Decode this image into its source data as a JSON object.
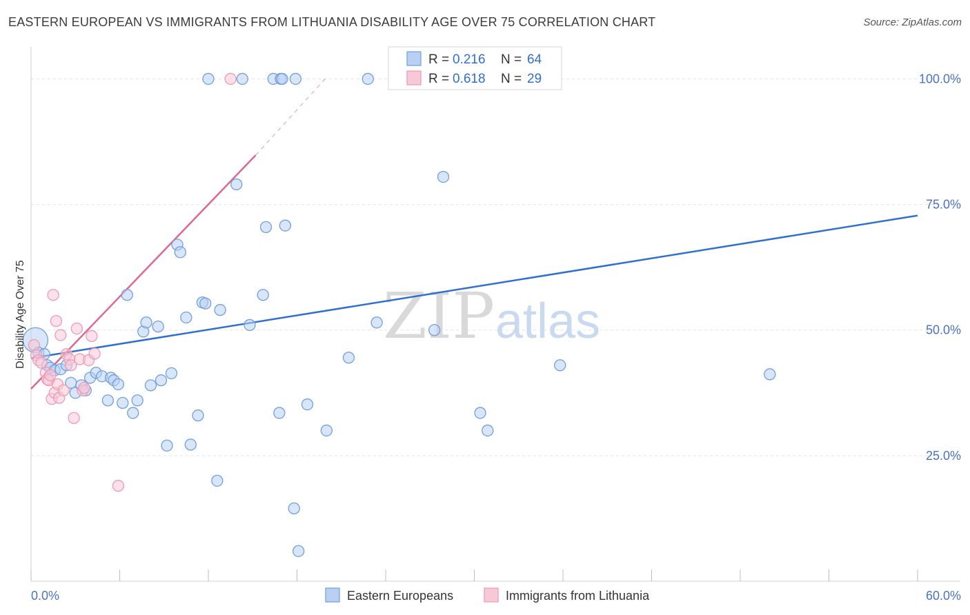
{
  "title": "EASTERN EUROPEAN VS IMMIGRANTS FROM LITHUANIA DISABILITY AGE OVER 75 CORRELATION CHART",
  "source": "Source: ZipAtlas.com",
  "watermark": {
    "zip": "ZIP",
    "atlas": "atlas"
  },
  "chart_data": {
    "type": "scatter",
    "xlabel": "",
    "ylabel": "Disability Age Over 75",
    "xlim": [
      0,
      60
    ],
    "ylim": [
      0,
      105
    ],
    "x_tick_labels": [
      "0.0%",
      "60.0%"
    ],
    "y_ticks": [
      25,
      50,
      75,
      100
    ],
    "y_tick_labels": [
      "25.0%",
      "50.0%",
      "75.0%",
      "100.0%"
    ],
    "grid": true,
    "legend": {
      "position": "top-center",
      "entries": [
        {
          "r_label": "R =",
          "r": "0.216",
          "n_label": "N =",
          "n": "64"
        },
        {
          "r_label": "R =",
          "r": "0.618",
          "n_label": "N =",
          "n": "29"
        }
      ]
    },
    "series": [
      {
        "name": "Eastern Europeans",
        "color": "#6f9fe0",
        "fill": "#b9d0f2",
        "line_color": "#2f6fd0",
        "trend": {
          "x0": 0,
          "y0": 44.4,
          "x1": 60,
          "y1": 72.8
        },
        "points": [
          [
            0.3,
            48,
            1
          ],
          [
            0.5,
            45.5,
            0
          ],
          [
            0.9,
            45.2,
            0
          ],
          [
            1.1,
            43,
            0
          ],
          [
            1.3,
            42.5,
            0
          ],
          [
            1.6,
            42,
            0
          ],
          [
            2.0,
            42.2,
            0
          ],
          [
            2.4,
            43,
            0
          ],
          [
            2.7,
            39.5,
            0
          ],
          [
            3.0,
            37.5,
            0
          ],
          [
            3.4,
            39,
            0
          ],
          [
            3.7,
            38,
            0
          ],
          [
            4.0,
            40.5,
            0
          ],
          [
            4.4,
            41.5,
            0
          ],
          [
            4.8,
            40.8,
            0
          ],
          [
            5.2,
            36,
            0
          ],
          [
            5.4,
            40.5,
            0
          ],
          [
            5.6,
            40,
            0
          ],
          [
            5.9,
            39.2,
            0
          ],
          [
            6.2,
            35.5,
            0
          ],
          [
            6.5,
            57,
            0
          ],
          [
            6.9,
            33.5,
            0
          ],
          [
            7.2,
            36,
            0
          ],
          [
            7.6,
            49.7,
            0
          ],
          [
            7.8,
            51.5,
            0
          ],
          [
            8.1,
            39,
            0
          ],
          [
            8.6,
            50.7,
            0
          ],
          [
            8.8,
            40,
            0
          ],
          [
            9.2,
            27,
            0
          ],
          [
            9.5,
            41.4,
            0
          ],
          [
            9.9,
            67,
            0
          ],
          [
            10.1,
            65.5,
            0
          ],
          [
            10.5,
            52.5,
            0
          ],
          [
            10.8,
            27.2,
            0
          ],
          [
            11.3,
            33,
            0
          ],
          [
            11.6,
            55.5,
            0
          ],
          [
            11.8,
            55.3,
            0
          ],
          [
            12.0,
            100,
            0
          ],
          [
            12.6,
            20,
            0
          ],
          [
            12.8,
            54,
            0
          ],
          [
            13.9,
            79,
            0
          ],
          [
            14.3,
            100,
            0
          ],
          [
            14.8,
            51,
            0
          ],
          [
            15.7,
            57,
            0
          ],
          [
            15.9,
            70.5,
            0
          ],
          [
            16.4,
            100,
            0
          ],
          [
            16.8,
            33.5,
            0
          ],
          [
            16.9,
            100,
            0
          ],
          [
            17.0,
            100,
            0
          ],
          [
            17.2,
            70.8,
            0
          ],
          [
            17.8,
            14.5,
            0
          ],
          [
            17.9,
            100,
            0
          ],
          [
            18.1,
            6,
            0
          ],
          [
            18.7,
            35.2,
            0
          ],
          [
            20.0,
            30,
            0
          ],
          [
            21.5,
            44.5,
            0
          ],
          [
            22.8,
            100,
            0
          ],
          [
            23.4,
            51.5,
            0
          ],
          [
            27.3,
            50,
            0
          ],
          [
            27.9,
            80.5,
            0
          ],
          [
            30.4,
            33.5,
            0
          ],
          [
            30.9,
            30,
            0
          ],
          [
            35.8,
            43,
            0
          ],
          [
            50.0,
            41.2,
            0
          ]
        ]
      },
      {
        "name": "Immigrants from Lithuania",
        "color": "#ee9ab3",
        "fill": "#f7c9d7",
        "line_color": "#e0668e",
        "trend": {
          "x0": 0,
          "y0": 38.3,
          "x1": 15.2,
          "y1": 84.8
        },
        "trend_dashed": {
          "x0": 15.2,
          "y0": 84.8,
          "x1": 19.9,
          "y1": 100
        },
        "points": [
          [
            0.2,
            47,
            0
          ],
          [
            0.35,
            45,
            0
          ],
          [
            0.5,
            44,
            0
          ],
          [
            0.7,
            43.5,
            0
          ],
          [
            1.0,
            41.5,
            0
          ],
          [
            1.1,
            40.2,
            0
          ],
          [
            1.2,
            40,
            0
          ],
          [
            1.3,
            41,
            0
          ],
          [
            1.4,
            36.3,
            0
          ],
          [
            1.5,
            57,
            0
          ],
          [
            1.6,
            37.5,
            0
          ],
          [
            1.7,
            51.8,
            0
          ],
          [
            1.8,
            39.2,
            0
          ],
          [
            1.9,
            36.5,
            0
          ],
          [
            2.0,
            49,
            0
          ],
          [
            2.2,
            38,
            0
          ],
          [
            2.4,
            45.2,
            0
          ],
          [
            2.6,
            44.2,
            0
          ],
          [
            2.7,
            43,
            0
          ],
          [
            2.9,
            32.5,
            0
          ],
          [
            3.1,
            50.3,
            0
          ],
          [
            3.3,
            44.2,
            0
          ],
          [
            3.5,
            38,
            0
          ],
          [
            3.6,
            38.5,
            0
          ],
          [
            3.9,
            44,
            0
          ],
          [
            4.1,
            48.8,
            0
          ],
          [
            4.3,
            45.3,
            0
          ],
          [
            5.9,
            19,
            0
          ],
          [
            13.5,
            100,
            0
          ]
        ]
      }
    ]
  },
  "bottom_legend": [
    "Eastern Europeans",
    "Immigrants from Lithuania"
  ]
}
